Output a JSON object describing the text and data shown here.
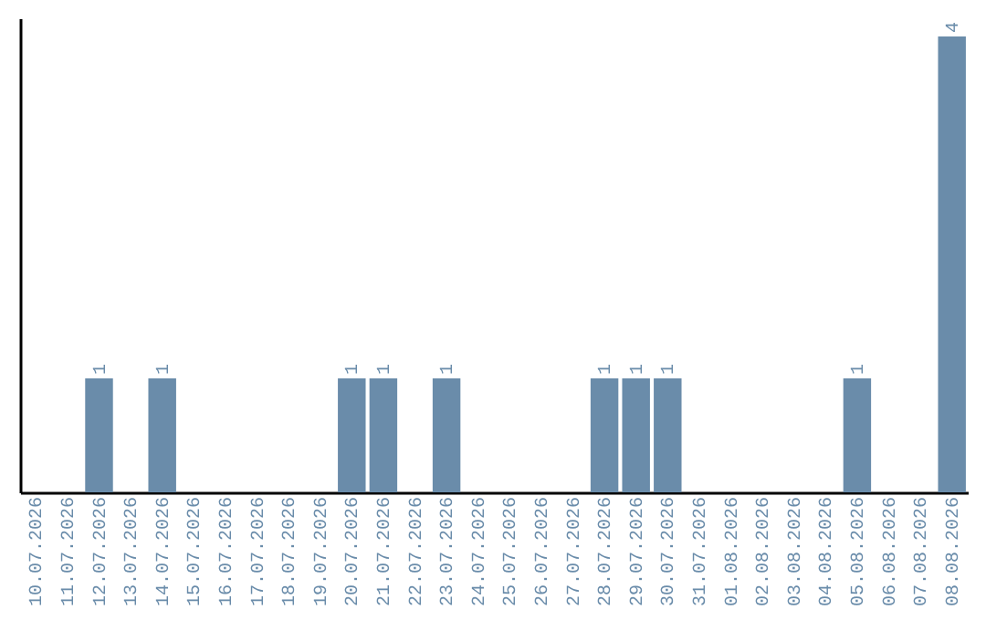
{
  "chart_data": {
    "type": "bar",
    "categories": [
      "10.07.2026",
      "11.07.2026",
      "12.07.2026",
      "13.07.2026",
      "14.07.2026",
      "15.07.2026",
      "16.07.2026",
      "17.07.2026",
      "18.07.2026",
      "19.07.2026",
      "20.07.2026",
      "21.07.2026",
      "22.07.2026",
      "23.07.2026",
      "24.07.2026",
      "25.07.2026",
      "26.07.2026",
      "27.07.2026",
      "28.07.2026",
      "29.07.2026",
      "30.07.2026",
      "31.07.2026",
      "01.08.2026",
      "02.08.2026",
      "03.08.2026",
      "04.08.2026",
      "05.08.2026",
      "06.08.2026",
      "07.08.2026",
      "08.08.2026"
    ],
    "values": [
      0,
      0,
      1,
      0,
      1,
      0,
      0,
      0,
      0,
      0,
      1,
      1,
      0,
      1,
      0,
      0,
      0,
      0,
      1,
      1,
      1,
      0,
      0,
      0,
      0,
      0,
      1,
      0,
      0,
      4
    ],
    "value_labels": [
      null,
      null,
      "1",
      null,
      "1",
      null,
      null,
      null,
      null,
      null,
      "1",
      "1",
      null,
      "1",
      null,
      null,
      null,
      null,
      "1",
      "1",
      "1",
      null,
      null,
      null,
      null,
      null,
      "1",
      null,
      null,
      "4"
    ],
    "color": "#6a8caa",
    "ylim": [
      0,
      4.16
    ],
    "tick_labels": "x",
    "grid": false
  }
}
